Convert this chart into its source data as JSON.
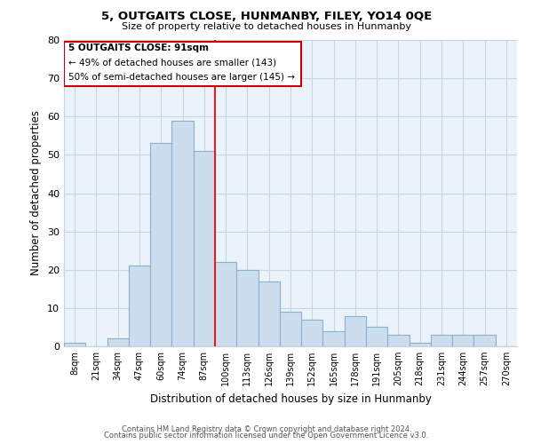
{
  "title": "5, OUTGAITS CLOSE, HUNMANBY, FILEY, YO14 0QE",
  "subtitle": "Size of property relative to detached houses in Hunmanby",
  "xlabel": "Distribution of detached houses by size in Hunmanby",
  "ylabel": "Number of detached properties",
  "bar_color": "#ccdded",
  "bar_edge_color": "#8ab0cc",
  "categories": [
    "8sqm",
    "21sqm",
    "34sqm",
    "47sqm",
    "60sqm",
    "74sqm",
    "87sqm",
    "100sqm",
    "113sqm",
    "126sqm",
    "139sqm",
    "152sqm",
    "165sqm",
    "178sqm",
    "191sqm",
    "205sqm",
    "218sqm",
    "231sqm",
    "244sqm",
    "257sqm",
    "270sqm"
  ],
  "values": [
    1,
    0,
    2,
    21,
    53,
    59,
    51,
    22,
    20,
    17,
    9,
    7,
    4,
    8,
    5,
    3,
    1,
    3,
    3,
    3,
    0
  ],
  "ylim": [
    0,
    80
  ],
  "yticks": [
    0,
    10,
    20,
    30,
    40,
    50,
    60,
    70,
    80
  ],
  "annotation_line1": "5 OUTGAITS CLOSE: 91sqm",
  "annotation_line2": "← 49% of detached houses are smaller (143)",
  "annotation_line3": "50% of semi-detached houses are larger (145) →",
  "vline_color": "red",
  "footer1": "Contains HM Land Registry data © Crown copyright and database right 2024.",
  "footer2": "Contains public sector information licensed under the Open Government Licence v3.0.",
  "background_color": "#ffffff",
  "grid_color": "#c8d4e0",
  "plot_bg_color": "#eaf2fa"
}
